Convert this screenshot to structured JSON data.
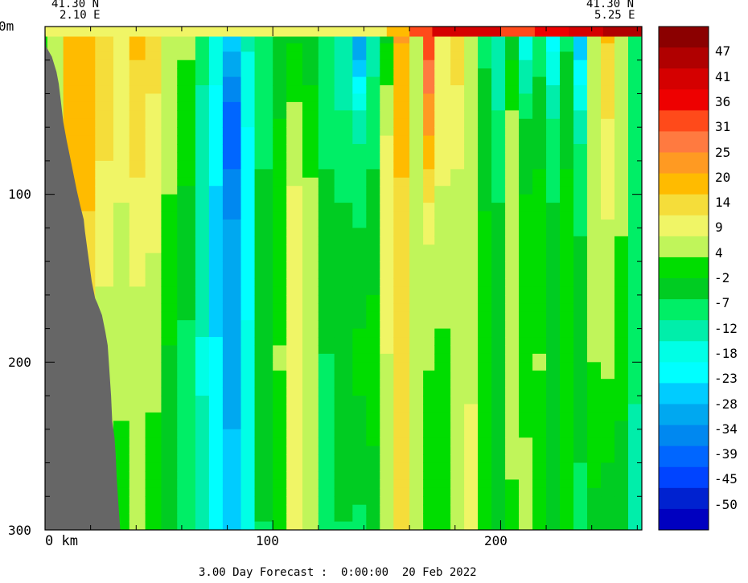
{
  "chart_data": {
    "type": "heatmap",
    "title": "",
    "footer": "3.00 Day Forecast :  0:00:00  20 Feb 2022",
    "corner_left": {
      "lat": "41.30 N",
      "lon": "2.10 E"
    },
    "corner_right": {
      "lat": "41.30 N",
      "lon": "5.25 E"
    },
    "xlabel_unit": "km",
    "ylabel_unit": "m",
    "xlim": [
      0,
      262
    ],
    "ylim": [
      0,
      300
    ],
    "x_ticks": [
      {
        "value": 0,
        "label": "0 km"
      },
      {
        "value": 100,
        "label": "100"
      },
      {
        "value": 200,
        "label": "200"
      }
    ],
    "y_ticks": [
      {
        "value": 0,
        "label": "0m"
      },
      {
        "value": 100,
        "label": "100"
      },
      {
        "value": 200,
        "label": "200"
      },
      {
        "value": 300,
        "label": "300"
      }
    ],
    "colorbar": {
      "labels": [
        "47",
        "41",
        "36",
        "31",
        "25",
        "20",
        "14",
        "9",
        "4",
        "-2",
        "-7",
        "-12",
        "-18",
        "-23",
        "-28",
        "-34",
        "-39",
        "-45",
        "-50"
      ],
      "colors": [
        "#8b0000",
        "#b00000",
        "#d50000",
        "#ee0000",
        "#ff4a1a",
        "#ff7a40",
        "#ff9a22",
        "#ffbb00",
        "#f5dd3a",
        "#f0f566",
        "#c0f55a",
        "#00dd00",
        "#00cc22",
        "#00ee66",
        "#00eeaa",
        "#00ffe6",
        "#00ffff",
        "#00ccff",
        "#00a8f0",
        "#0088f0",
        "#0066ff",
        "#0044ff",
        "#0022d0",
        "#0000c0"
      ]
    },
    "seabed_profile": [
      [
        0,
        0
      ],
      [
        0.5,
        12
      ],
      [
        3,
        18
      ],
      [
        5,
        27
      ],
      [
        6,
        34
      ],
      [
        7,
        45
      ],
      [
        8,
        57
      ],
      [
        9.5,
        68
      ],
      [
        11,
        78
      ],
      [
        12.5,
        88
      ],
      [
        14,
        98
      ],
      [
        15.5,
        107
      ],
      [
        17,
        115
      ],
      [
        17.5,
        122
      ],
      [
        18.5,
        132
      ],
      [
        19.5,
        142
      ],
      [
        20.5,
        152
      ],
      [
        22,
        162
      ],
      [
        23,
        165
      ],
      [
        25,
        172
      ],
      [
        26.5,
        182
      ],
      [
        27.5,
        190
      ],
      [
        28,
        200
      ],
      [
        28.5,
        210
      ],
      [
        29,
        220
      ],
      [
        29.5,
        235
      ],
      [
        30.5,
        245
      ],
      [
        31,
        255
      ],
      [
        31.5,
        270
      ],
      [
        32,
        280
      ],
      [
        32.5,
        290
      ],
      [
        33,
        300
      ]
    ],
    "value_bands": [
      {
        "x": [
          1,
          8
        ],
        "v": [
          6,
          5,
          5,
          4,
          3
        ]
      },
      {
        "x": [
          8,
          22
        ],
        "v": [
          19,
          21,
          16,
          10,
          6
        ]
      },
      {
        "x": [
          22,
          30
        ],
        "v": [
          17,
          14,
          10,
          6,
          4
        ]
      },
      {
        "x": [
          30,
          37
        ],
        "v": [
          11,
          9,
          8,
          5,
          2
        ]
      },
      {
        "x": [
          37,
          44
        ],
        "v": [
          18,
          15,
          10,
          6,
          4
        ]
      },
      {
        "x": [
          44,
          51
        ],
        "v": [
          14,
          12,
          9,
          5,
          1
        ]
      },
      {
        "x": [
          51,
          58
        ],
        "v": [
          8,
          6,
          3,
          -1,
          -4
        ]
      },
      {
        "x": [
          58,
          66
        ],
        "v": [
          5,
          2,
          -2,
          -6,
          -8
        ]
      },
      {
        "x": [
          66,
          72
        ],
        "v": [
          -8,
          -10,
          -12,
          -14,
          -12
        ]
      },
      {
        "x": [
          72,
          78
        ],
        "v": [
          -15,
          -20,
          -24,
          -22,
          -18
        ]
      },
      {
        "x": [
          78,
          86
        ],
        "v": [
          -22,
          -40,
          -30,
          -28,
          -25
        ]
      },
      {
        "x": [
          86,
          92
        ],
        "v": [
          -12,
          -18,
          -20,
          -17,
          -14
        ]
      },
      {
        "x": [
          92,
          100
        ],
        "v": [
          -8,
          -6,
          -3,
          -3,
          -5
        ]
      },
      {
        "x": [
          100,
          106
        ],
        "v": [
          -4,
          0,
          3,
          4,
          1
        ]
      },
      {
        "x": [
          106,
          113
        ],
        "v": [
          -2,
          6,
          10,
          12,
          10
        ]
      },
      {
        "x": [
          113,
          120
        ],
        "v": [
          -4,
          2,
          6,
          8,
          4
        ]
      },
      {
        "x": [
          120,
          127
        ],
        "v": [
          -9,
          -6,
          -3,
          -5,
          -7
        ]
      },
      {
        "x": [
          127,
          135
        ],
        "v": [
          -14,
          -8,
          -4,
          -2,
          -5
        ]
      },
      {
        "x": [
          135,
          141
        ],
        "v": [
          -34,
          -10,
          -5,
          1,
          -6
        ]
      },
      {
        "x": [
          141,
          147
        ],
        "v": [
          -12,
          -6,
          -3,
          2,
          -3
        ]
      },
      {
        "x": [
          147,
          153
        ],
        "v": [
          -2,
          8,
          12,
          8,
          6
        ]
      },
      {
        "x": [
          153,
          160
        ],
        "v": [
          22,
          18,
          16,
          17,
          15
        ]
      },
      {
        "x": [
          160,
          166
        ],
        "v": [
          8,
          6,
          8,
          6,
          5
        ]
      },
      {
        "x": [
          166,
          171
        ],
        "v": [
          34,
          22,
          9,
          4,
          2
        ]
      },
      {
        "x": [
          171,
          178
        ],
        "v": [
          9,
          10,
          7,
          3,
          2
        ]
      },
      {
        "x": [
          178,
          184
        ],
        "v": [
          16,
          10,
          6,
          4,
          4
        ]
      },
      {
        "x": [
          184,
          190
        ],
        "v": [
          6,
          5,
          7,
          8,
          9
        ]
      },
      {
        "x": [
          190,
          196
        ],
        "v": [
          -6,
          -3,
          0,
          2,
          3
        ]
      },
      {
        "x": [
          196,
          202
        ],
        "v": [
          -14,
          -8,
          -4,
          -1,
          -3
        ]
      },
      {
        "x": [
          202,
          208
        ],
        "v": [
          -3,
          5,
          8,
          6,
          3
        ]
      },
      {
        "x": [
          208,
          214
        ],
        "v": [
          -18,
          -4,
          1,
          3,
          5
        ]
      },
      {
        "x": [
          214,
          220
        ],
        "v": [
          -8,
          -2,
          2,
          4,
          2
        ]
      },
      {
        "x": [
          220,
          226
        ],
        "v": [
          -22,
          -8,
          -4,
          -1,
          -3
        ]
      },
      {
        "x": [
          226,
          232
        ],
        "v": [
          -6,
          -2,
          2,
          3,
          1
        ]
      },
      {
        "x": [
          232,
          238
        ],
        "v": [
          -28,
          -10,
          -5,
          -3,
          -6
        ]
      },
      {
        "x": [
          238,
          244
        ],
        "v": [
          6,
          8,
          6,
          4,
          -2
        ]
      },
      {
        "x": [
          244,
          250
        ],
        "v": [
          18,
          12,
          8,
          5,
          -4
        ]
      },
      {
        "x": [
          250,
          256
        ],
        "v": [
          8,
          6,
          4,
          2,
          -5
        ]
      },
      {
        "x": [
          256,
          262
        ],
        "v": [
          -8,
          -6,
          -7,
          -9,
          -10
        ]
      }
    ],
    "surface_layer": {
      "depth_range": [
        0,
        6
      ],
      "values_by_x": [
        [
          0,
          9
        ],
        [
          150,
          20
        ],
        [
          160,
          31
        ],
        [
          170,
          41
        ],
        [
          185,
          41
        ],
        [
          200,
          31
        ],
        [
          215,
          36
        ],
        [
          230,
          41
        ],
        [
          245,
          47
        ],
        [
          262,
          41
        ]
      ]
    }
  }
}
